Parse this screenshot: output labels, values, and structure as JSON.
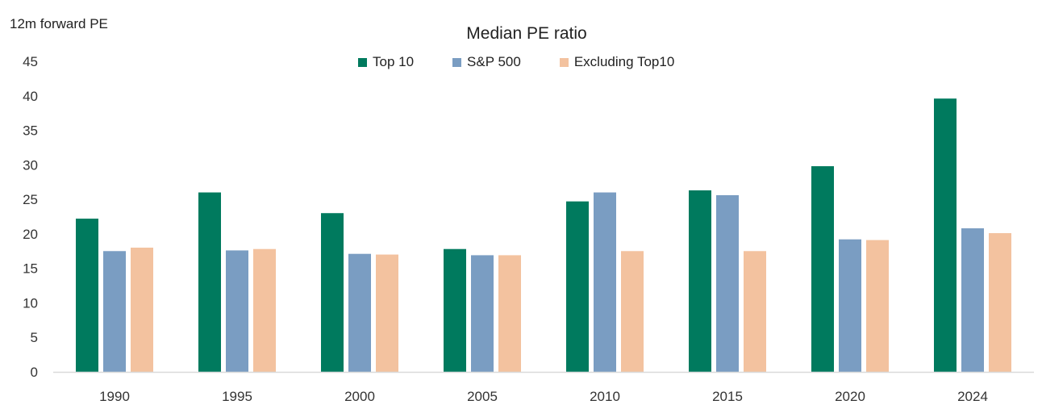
{
  "chart_data": {
    "type": "bar",
    "title": "Median PE ratio",
    "ylabel": "12m forward PE",
    "xlabel": "",
    "ylim": [
      0,
      45
    ],
    "yticks": [
      0,
      5,
      10,
      15,
      20,
      25,
      30,
      35,
      40,
      45
    ],
    "grid": false,
    "legend_position": "top",
    "categories": [
      "1990",
      "1995",
      "2000",
      "2005",
      "2010",
      "2015",
      "2020",
      "2024"
    ],
    "series": [
      {
        "name": "Top 10",
        "color": "#007a5e",
        "values": [
          22.2,
          26.0,
          23.0,
          17.8,
          24.7,
          26.3,
          29.8,
          39.6
        ]
      },
      {
        "name": "S&P 500",
        "color": "#7a9dc2",
        "values": [
          17.5,
          17.6,
          17.1,
          16.9,
          26.0,
          25.6,
          19.2,
          20.8
        ]
      },
      {
        "name": "Excluding Top10",
        "color": "#f3c29f",
        "values": [
          18.0,
          17.8,
          17.0,
          16.9,
          17.5,
          17.5,
          19.1,
          20.1
        ]
      }
    ]
  }
}
